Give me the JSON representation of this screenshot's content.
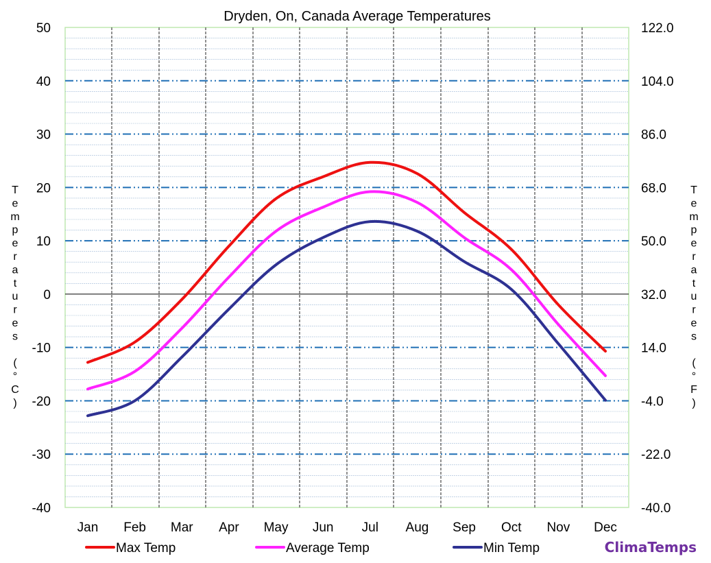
{
  "chart_data": {
    "type": "line",
    "title": "Dryden, On, Canada Average Temperatures",
    "categories": [
      "Jan",
      "Feb",
      "Mar",
      "Apr",
      "May",
      "Jun",
      "Jul",
      "Aug",
      "Sep",
      "Oct",
      "Nov",
      "Dec"
    ],
    "series": [
      {
        "name": "Max Temp",
        "color": "#ee1111",
        "values": [
          -12.8,
          -9.0,
          -1.0,
          9.0,
          17.9,
          22.0,
          24.7,
          22.6,
          15.3,
          8.4,
          -2.0,
          -10.7
        ]
      },
      {
        "name": "Average Temp",
        "color": "#ff22ff",
        "values": [
          -17.8,
          -14.5,
          -6.4,
          3.2,
          11.8,
          16.3,
          19.2,
          17.2,
          10.6,
          4.6,
          -5.7,
          -15.3
        ]
      },
      {
        "name": "Min Temp",
        "color": "#2e3192",
        "values": [
          -22.8,
          -20.0,
          -11.8,
          -2.8,
          5.5,
          10.6,
          13.6,
          11.8,
          6.1,
          0.9,
          -9.3,
          -19.9
        ]
      }
    ],
    "ylabel_left": "Temperatures (°C)",
    "ylabel_right": "Temperatures (°F)",
    "ylim": [
      -40,
      50
    ],
    "yticks_left": [
      "50",
      "40",
      "30",
      "20",
      "10",
      "0",
      "-10",
      "-20",
      "-30",
      "-40"
    ],
    "yticks_right": [
      "122.0",
      "104.0",
      "86.0",
      "68.0",
      "50.0",
      "32.0",
      "14.0",
      "-4.0",
      "-22.0",
      "-40.0"
    ],
    "grid": true,
    "legend_position": "bottom",
    "gridline_color": "#1f6fb5",
    "minor_gridline_color": "#9fb9d6",
    "plot_border_color": "#bfe8b0"
  },
  "brand": {
    "label": "ClimaTemps",
    "color": "#7030a0"
  }
}
